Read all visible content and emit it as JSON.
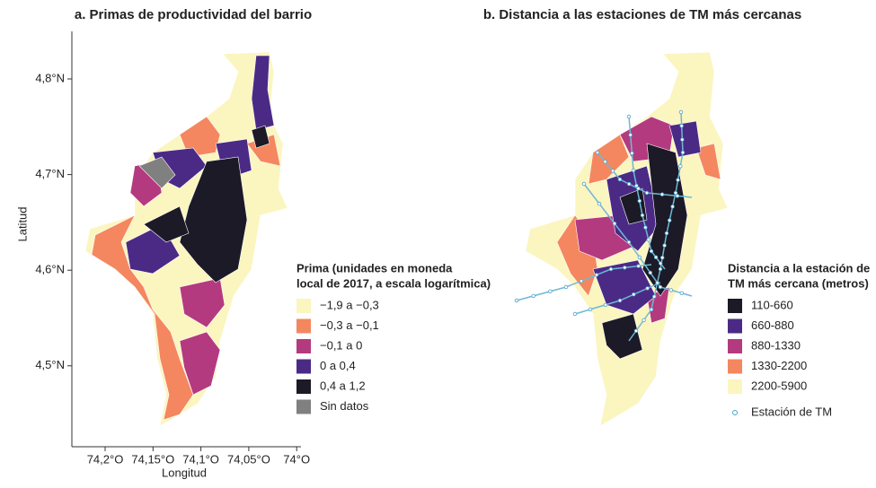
{
  "panels": [
    {
      "title": "a. Primas de productividad del barrio",
      "x_label": "Longitud",
      "y_label": "Latitud",
      "xticks": [
        {
          "value": 74.2,
          "label": "74,2°O"
        },
        {
          "value": 74.15,
          "label": "74,15°O"
        },
        {
          "value": 74.1,
          "label": "74,1°O"
        },
        {
          "value": 74.05,
          "label": "74,05°O"
        },
        {
          "value": 74,
          "label": "74°O"
        }
      ],
      "yticks": [
        {
          "value": 4.8,
          "label": "4,8°N"
        },
        {
          "value": 4.7,
          "label": "4,7°N"
        },
        {
          "value": 4.6,
          "label": "4,6°N"
        },
        {
          "value": 4.5,
          "label": "4,5°N"
        }
      ],
      "legend": {
        "title": [
          "Prima (unidades en moneda",
          "local de 2017, a escala logarítmica)"
        ],
        "items": [
          {
            "label": "−1,9 a −0,3",
            "color": "#fbf5c0"
          },
          {
            "label": "−0,3 a −0,1",
            "color": "#f4875f"
          },
          {
            "label": "−0,1 a 0",
            "color": "#b43a7f"
          },
          {
            "label": "0 a 0,4",
            "color": "#4b2a86"
          },
          {
            "label": "0,4 a 1,2",
            "color": "#1c1a26"
          },
          {
            "label": "Sin datos",
            "color": "#808080"
          }
        ]
      }
    },
    {
      "title": "b. Distancia a las estaciones de TM más cercanas",
      "legend": {
        "title": [
          "Distancia a la estación de",
          "TM más cercana (metros)"
        ],
        "items": [
          {
            "label": "110-660",
            "color": "#1c1a26"
          },
          {
            "label": "660-880",
            "color": "#4b2a86"
          },
          {
            "label": "880-1330",
            "color": "#b43a7f"
          },
          {
            "label": "1330-2200",
            "color": "#f4875f"
          },
          {
            "label": "2200-5900",
            "color": "#fbf5c0"
          }
        ],
        "station": "Estación de TM"
      }
    }
  ]
}
